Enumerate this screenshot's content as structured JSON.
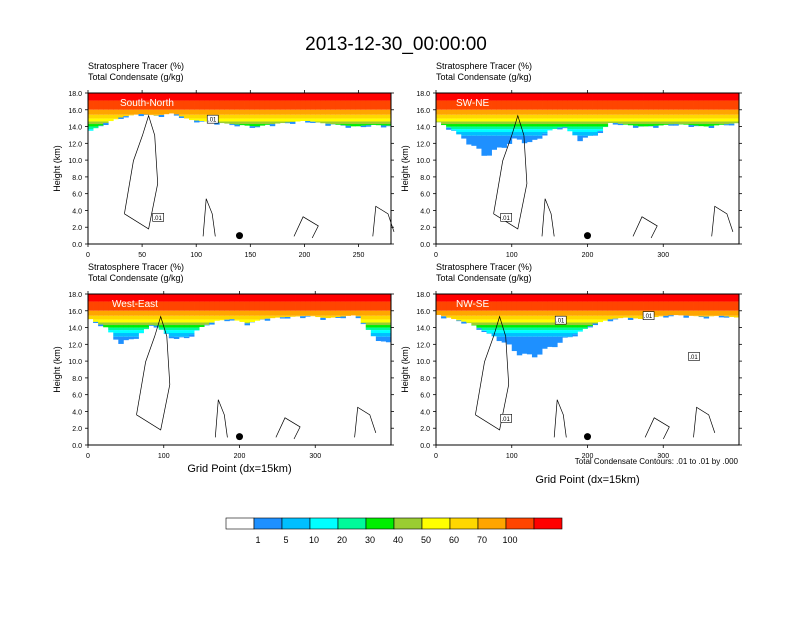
{
  "title": "2013-12-30_00:00:00",
  "chart_data": [
    {
      "type": "heatmap",
      "panel": "South-North",
      "label_fill": "Stratosphere Tracer   (%)",
      "label_contour": "Total Condensate   (g/kg)",
      "ylabel": "Height (km)",
      "xlabel": "",
      "ylim": [
        0,
        18
      ],
      "xlim": [
        0,
        280
      ],
      "xticks": [
        "0",
        "50",
        "100",
        "150",
        "200",
        "250"
      ],
      "yticks": [
        "0.0",
        "2.0",
        "4.0",
        "6.0",
        "8.0",
        "10.0",
        "12.0",
        "14.0",
        "16.0",
        "18.0"
      ],
      "tropopause_profile_km": [
        13.5,
        14.5,
        15.2,
        15.5,
        15.3,
        15.6,
        14.8,
        14.6,
        14.4,
        14.2,
        14.0,
        14.3,
        14.5,
        14.7,
        14.4,
        14.2,
        14.0,
        14.2,
        14.1
      ],
      "marker": {
        "x": 140,
        "y": 1.0
      },
      "contour_labels": [
        ".01",
        ".01"
      ]
    },
    {
      "type": "heatmap",
      "panel": "SW-NE",
      "label_fill": "Stratosphere Tracer   (%)",
      "label_contour": "Total Condensate   (g/kg)",
      "ylabel": "Height (km)",
      "xlabel": "",
      "ylim": [
        0,
        18
      ],
      "xlim": [
        0,
        400
      ],
      "xticks": [
        "0",
        "100",
        "200",
        "300"
      ],
      "yticks": [
        "0.0",
        "2.0",
        "4.0",
        "6.0",
        "8.0",
        "10.0",
        "12.0",
        "14.0",
        "16.0",
        "18.0"
      ],
      "tropopause_profile_km": [
        14.5,
        13.5,
        12.0,
        10.5,
        11.5,
        12.5,
        12.0,
        13.5,
        14.0,
        12.5,
        13.0,
        14.5,
        14.2,
        14.0,
        14.1,
        14.3,
        14.2,
        14.0,
        14.2,
        14.4
      ],
      "marker": {
        "x": 200,
        "y": 1.0
      },
      "contour_labels": [
        ".01"
      ]
    },
    {
      "type": "heatmap",
      "panel": "West-East",
      "label_fill": "Stratosphere Tracer   (%)",
      "label_contour": "Total Condensate   (g/kg)",
      "ylabel": "Height (km)",
      "xlabel": "Grid Point (dx=15km)",
      "ylim": [
        0,
        18
      ],
      "xlim": [
        0,
        400
      ],
      "xticks": [
        "0",
        "100",
        "200",
        "300"
      ],
      "yticks": [
        "0.0",
        "2.0",
        "4.0",
        "6.0",
        "8.0",
        "10.0",
        "12.0",
        "14.0",
        "16.0",
        "18.0"
      ],
      "tropopause_profile_km": [
        15.0,
        14.0,
        12.0,
        13.0,
        14.5,
        13.0,
        12.5,
        14.0,
        14.8,
        15.0,
        14.5,
        15.0,
        15.2,
        15.3,
        15.4,
        15.1,
        15.3,
        15.5,
        13.0,
        12.0
      ],
      "marker": {
        "x": 200,
        "y": 1.0
      },
      "contour_labels": []
    },
    {
      "type": "heatmap",
      "panel": "NW-SE",
      "label_fill": "Stratosphere Tracer   (%)",
      "label_contour": "Total Condensate   (g/kg)",
      "ylabel": "Height (km)",
      "xlabel": "Grid Point (dx=15km)",
      "ylim": [
        0,
        18
      ],
      "xlim": [
        0,
        400
      ],
      "xticks": [
        "0",
        "100",
        "200",
        "300"
      ],
      "yticks": [
        "0.0",
        "2.0",
        "4.0",
        "6.0",
        "8.0",
        "10.0",
        "12.0",
        "14.0",
        "16.0",
        "18.0"
      ],
      "tropopause_profile_km": [
        15.5,
        15.0,
        14.5,
        13.5,
        12.5,
        11.0,
        10.5,
        11.5,
        12.5,
        13.5,
        14.5,
        15.0,
        15.2,
        15.0,
        15.3,
        15.5,
        15.4,
        15.3,
        15.4,
        15.2
      ],
      "marker": {
        "x": 200,
        "y": 1.0
      },
      "contour_labels": [
        ".01",
        ".01",
        ".01",
        ".01"
      ]
    }
  ],
  "contour_note": "Total Condensate Contours: .01 to .01 by .000",
  "colorbar": {
    "levels": [
      "1",
      "5",
      "10",
      "20",
      "30",
      "40",
      "50",
      "60",
      "70",
      "100"
    ],
    "colors": [
      "#ffffff",
      "#1e90ff",
      "#00bfff",
      "#00ffff",
      "#00fa9a",
      "#00ee00",
      "#9acd32",
      "#ffff00",
      "#ffd700",
      "#ffa500",
      "#ff4500",
      "#ff0000"
    ]
  }
}
